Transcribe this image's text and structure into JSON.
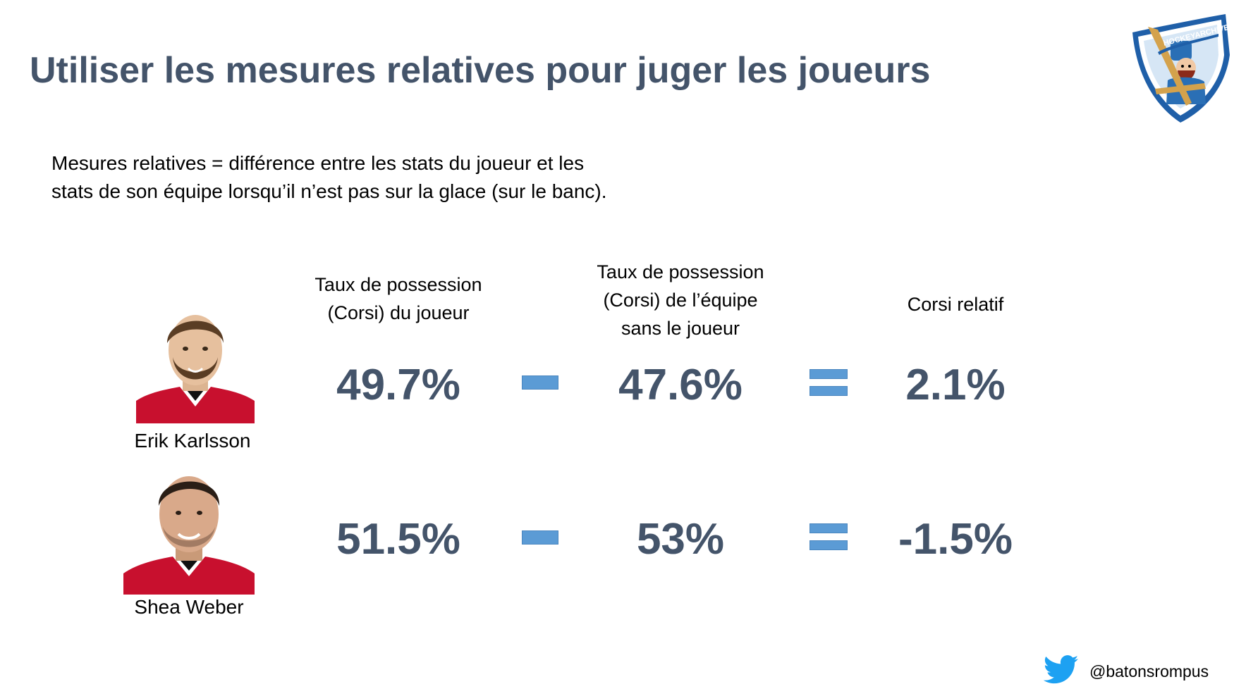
{
  "slide": {
    "title": "Utiliser les mesures relatives pour juger les joueurs",
    "intro_lines": [
      "Mesures relatives = différence entre les stats du joueur et les",
      "stats de son équipe lorsqu’il n’est pas sur la glace (sur le banc)."
    ],
    "logo_text": "HOCKEYARCHIVES.INFO"
  },
  "columns": {
    "player_corsi": [
      "Taux de possession",
      "(Corsi) du joueur"
    ],
    "team_corsi": [
      "Taux de possession",
      "(Corsi) de l’équipe",
      "sans le joueur"
    ],
    "relative_corsi": [
      "Corsi relatif"
    ]
  },
  "rows": [
    {
      "player": "Erik Karlsson",
      "player_corsi": "49.7%",
      "team_corsi": "47.6%",
      "relative_corsi": "2.1%"
    },
    {
      "player": "Shea Weber",
      "player_corsi": "51.5%",
      "team_corsi": "53%",
      "relative_corsi": "-1.5%"
    }
  ],
  "footer": {
    "twitter_handle": "@batonsrompus"
  },
  "icons": {
    "minus": "minus-icon",
    "equals": "equals-icon",
    "twitter": "twitter-bird-icon"
  },
  "colors": {
    "title": "#44546a",
    "operator": "#5b9bd5",
    "jersey": "#c8102e",
    "logo_blue": "#1f5fa8"
  }
}
